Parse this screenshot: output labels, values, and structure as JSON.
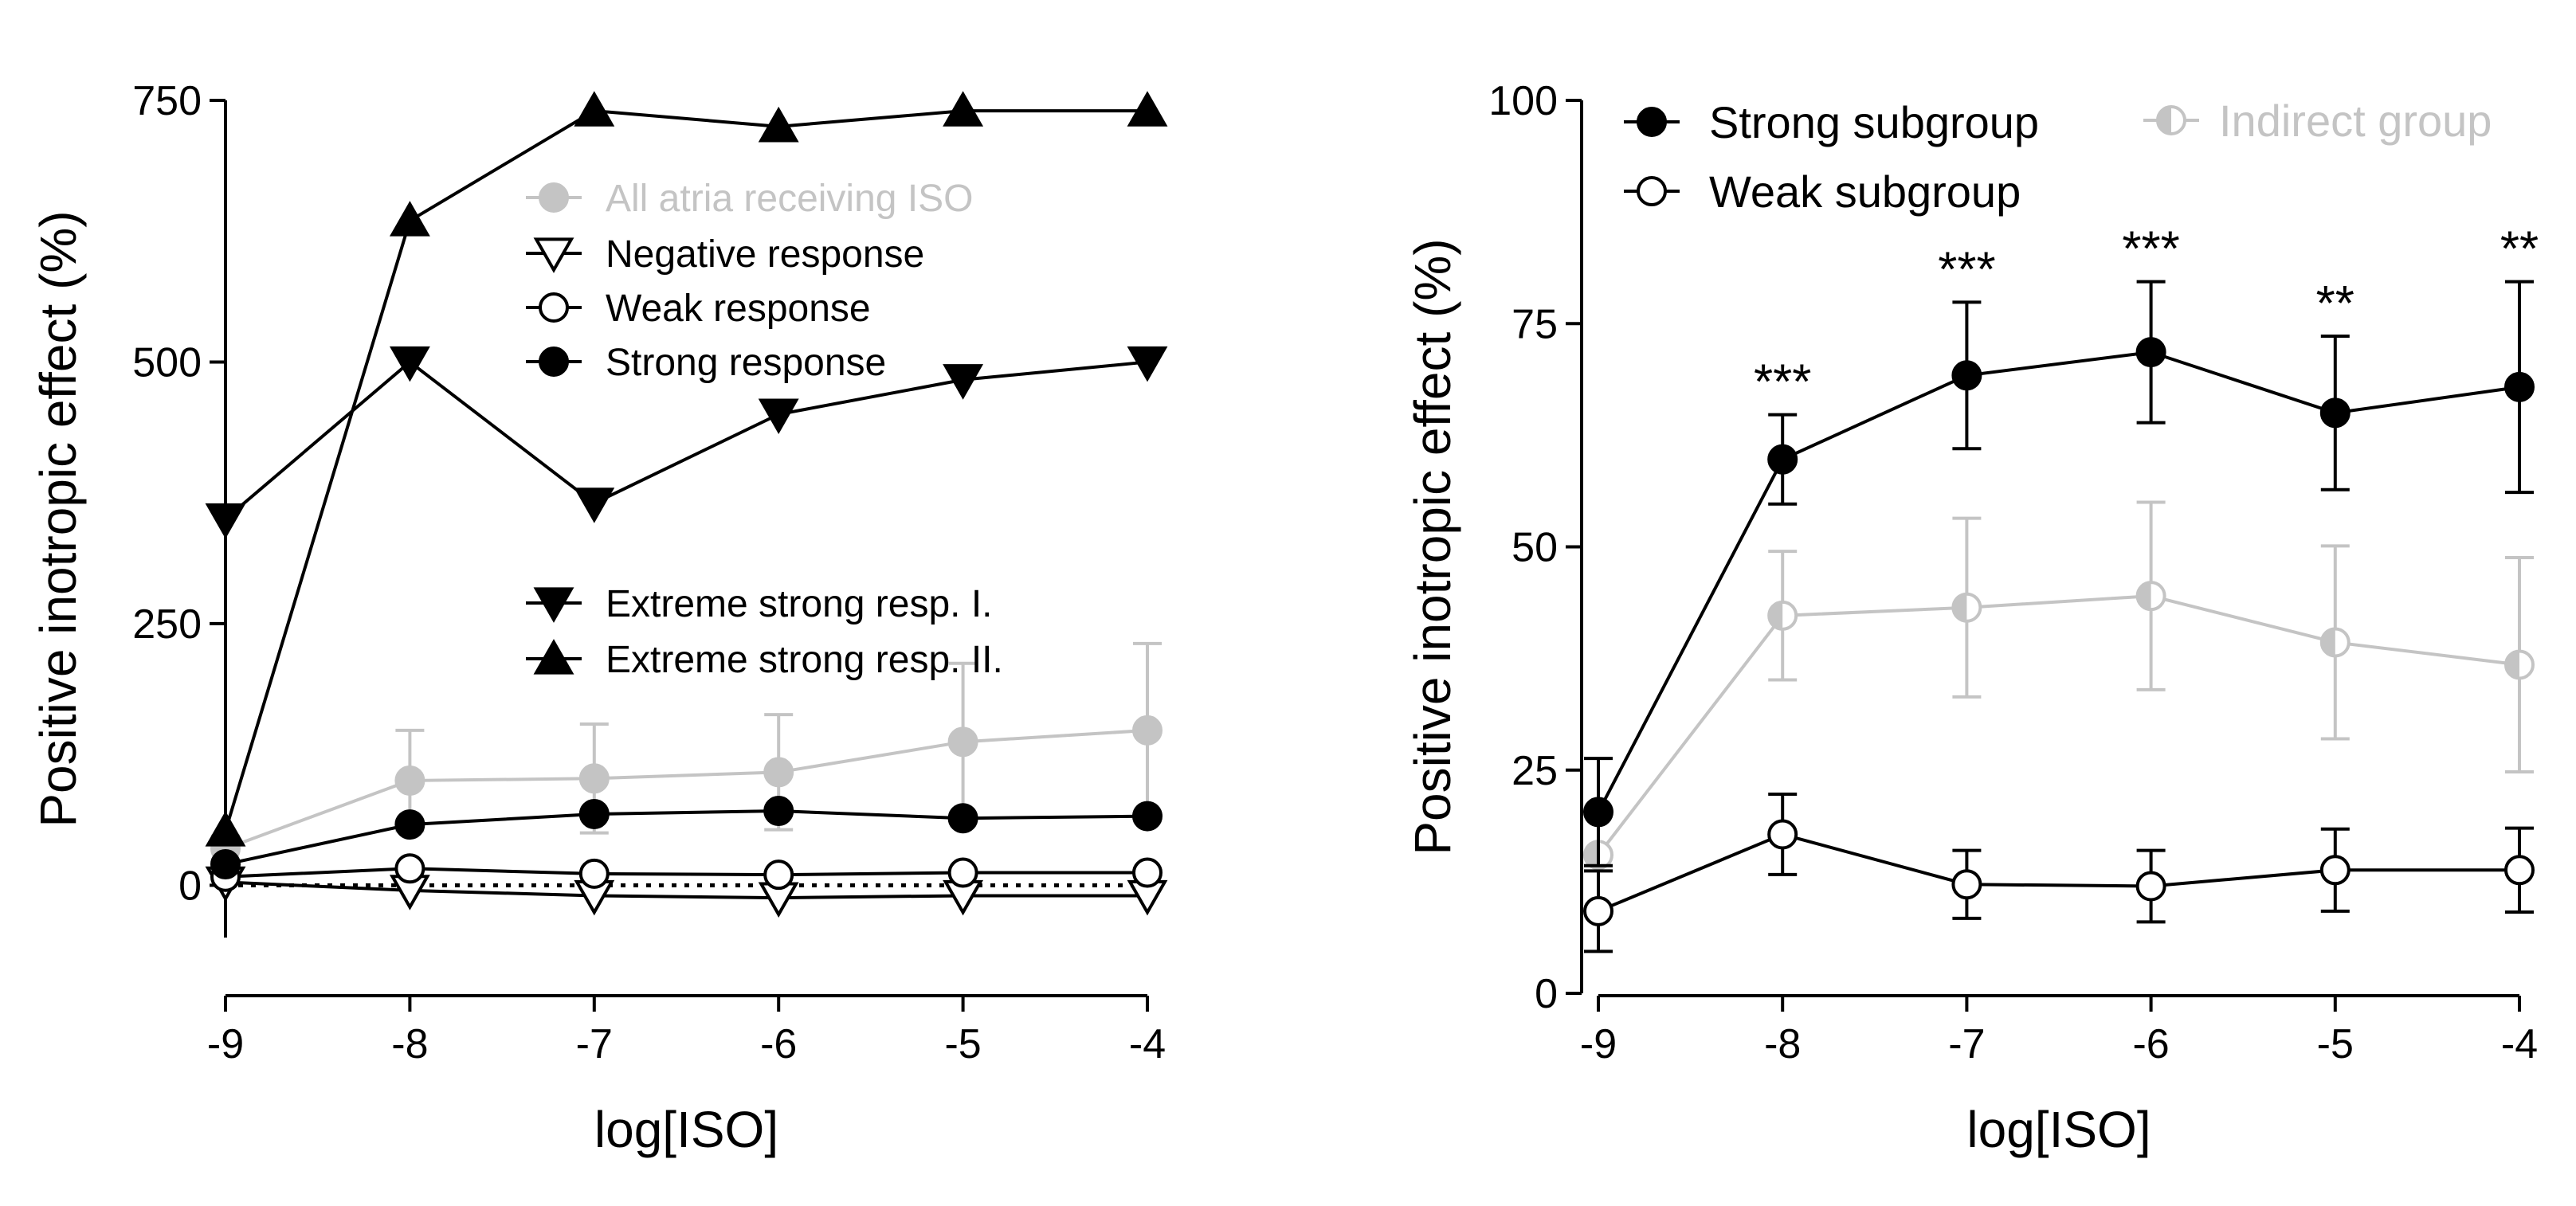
{
  "colors": {
    "black": "#000000",
    "gray": "#c4c4c4",
    "white": "#ffffff"
  },
  "chart_data": [
    {
      "type": "line",
      "panel": "left",
      "xlabel": "log[ISO]",
      "ylabel": "Positive inotropic effect (%)",
      "x": [
        -9,
        -8,
        -7,
        -6,
        -5,
        -4
      ],
      "xticks": [
        "-9",
        "-8",
        "-7",
        "-6",
        "-5",
        "-4"
      ],
      "ylim": [
        -50,
        750
      ],
      "yticks": [
        "0",
        "250",
        "500",
        "750"
      ],
      "legend": [
        "All atria receiving ISO",
        "Negative response",
        "Weak response",
        "Strong response",
        "Extreme strong resp. I.",
        "Extreme strong resp. II."
      ],
      "series": [
        {
          "name": "All atria receiving ISO",
          "color": "#c4c4c4",
          "marker": "circle-filled",
          "values": [
            35,
            100,
            102,
            108,
            137,
            148
          ],
          "err": [
            12,
            48,
            52,
            55,
            75,
            83
          ]
        },
        {
          "name": "Negative response",
          "color": "#000000",
          "marker": "triangle-down-open",
          "values": [
            3,
            -5,
            -10,
            -12,
            -10,
            -10
          ],
          "err": [
            0,
            0,
            0,
            0,
            0,
            0
          ]
        },
        {
          "name": "Weak response",
          "color": "#000000",
          "marker": "circle-open",
          "values": [
            8,
            16,
            11,
            10,
            12,
            12
          ],
          "err": [
            0,
            0,
            0,
            0,
            0,
            0
          ]
        },
        {
          "name": "Strong response",
          "color": "#000000",
          "marker": "circle-filled",
          "values": [
            20,
            58,
            68,
            71,
            64,
            66
          ],
          "err": [
            0,
            0,
            0,
            0,
            0,
            0
          ]
        },
        {
          "name": "Extreme strong resp. I.",
          "color": "#000000",
          "marker": "triangle-down-filled",
          "values": [
            350,
            500,
            365,
            450,
            483,
            500
          ],
          "err": [
            0,
            0,
            0,
            0,
            0,
            0
          ]
        },
        {
          "name": "Extreme strong resp. II.",
          "color": "#000000",
          "marker": "triangle-up-filled",
          "values": [
            52,
            635,
            740,
            725,
            740,
            740
          ],
          "err": [
            0,
            0,
            0,
            0,
            0,
            0
          ]
        }
      ],
      "reference_line": {
        "y": 0,
        "style": "dotted"
      }
    },
    {
      "type": "line",
      "panel": "right",
      "xlabel": "log[ISO]",
      "ylabel": "Positive inotropic effect (%)",
      "x": [
        -9,
        -8,
        -7,
        -6,
        -5,
        -4
      ],
      "xticks": [
        "-9",
        "-8",
        "-7",
        "-6",
        "-5",
        "-4"
      ],
      "ylim": [
        0,
        100
      ],
      "yticks": [
        "0",
        "25",
        "50",
        "75",
        "100"
      ],
      "legend": [
        "Strong subgroup",
        "Weak subgroup",
        "Indirect group"
      ],
      "series": [
        {
          "name": "Indirect group",
          "color": "#c4c4c4",
          "marker": "circle-half",
          "values": [
            15.5,
            42.3,
            43.2,
            44.5,
            39.3,
            36.8
          ],
          "err": [
            0,
            7.2,
            10,
            10.5,
            10.8,
            12
          ]
        },
        {
          "name": "Strong subgroup",
          "color": "#000000",
          "marker": "circle-filled",
          "values": [
            20.3,
            59.8,
            69.2,
            71.8,
            65,
            67.9
          ],
          "err": [
            6,
            5,
            8.2,
            7.9,
            8.6,
            11.8
          ]
        },
        {
          "name": "Weak subgroup",
          "color": "#000000",
          "marker": "circle-open",
          "values": [
            9.2,
            17.8,
            12.2,
            12,
            13.8,
            13.8
          ],
          "err": [
            4.5,
            4.5,
            3.8,
            4,
            4.6,
            4.7
          ]
        }
      ],
      "annotations": [
        "",
        "***",
        "***",
        "***",
        "**",
        "**"
      ]
    }
  ]
}
